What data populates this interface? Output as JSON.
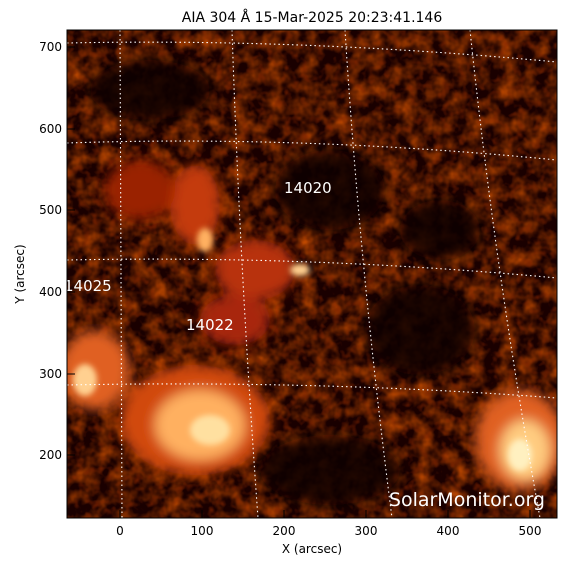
{
  "title": "AIA 304 Å 15-Mar-2025 20:23:41.146",
  "x_axis_label": "X (arcsec)",
  "y_axis_label": "Y (arcsec)",
  "x_ticks": [
    "0",
    "100",
    "200",
    "300",
    "400",
    "500"
  ],
  "y_ticks": [
    "700",
    "600",
    "500",
    "400",
    "300",
    "200"
  ],
  "active_regions": [
    {
      "id": "ar-14020",
      "label": "14020"
    },
    {
      "id": "ar-14025",
      "label": "14025"
    },
    {
      "id": "ar-14022",
      "label": "14022"
    }
  ],
  "watermark": "SolarMonitor.org",
  "colors": {
    "background": "#ffffff",
    "image_dark": "#1a0000",
    "image_mid": "#a11e00",
    "image_bright": "#ffcc66",
    "grid": "#ffffff",
    "axis": "#000000"
  }
}
